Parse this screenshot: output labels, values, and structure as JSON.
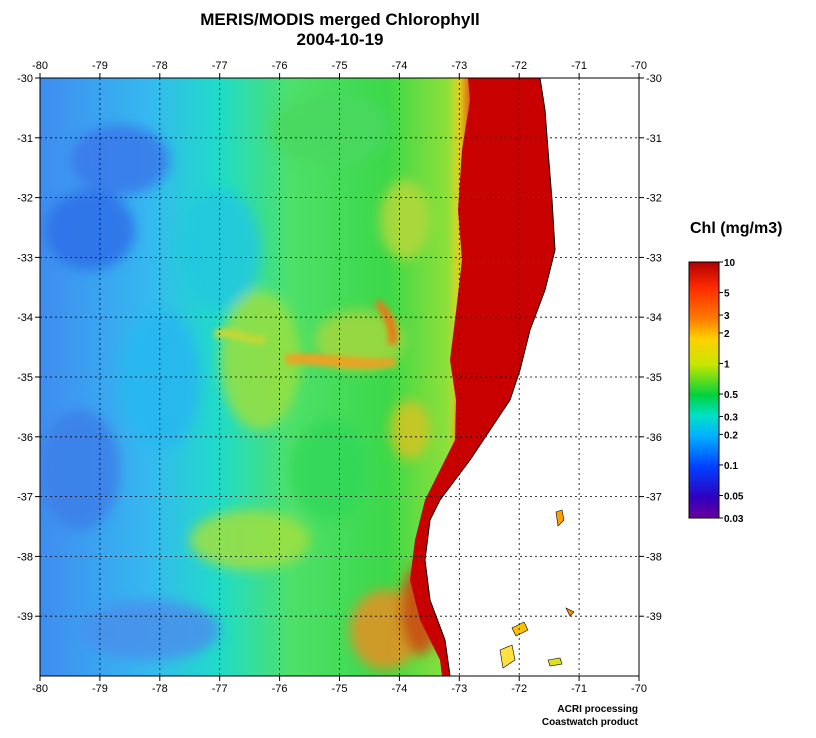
{
  "title": {
    "line1": "MERIS/MODIS merged Chlorophyll",
    "line2": "2004-10-19"
  },
  "axes": {
    "lon_ticks": [
      "-80",
      "-79",
      "-78",
      "-77",
      "-76",
      "-75",
      "-74",
      "-73",
      "-72",
      "-71",
      "-70"
    ],
    "lat_ticks_side": [
      "-30",
      "-31",
      "-32",
      "-33",
      "-34",
      "-35",
      "-36",
      "-37",
      "-38",
      "-39"
    ],
    "lon_range": [
      -80,
      -70
    ],
    "lat_range": [
      -30,
      -40
    ],
    "grid": "dotted"
  },
  "colorbar": {
    "title": "Chl (mg/m3)",
    "labels": [
      "10",
      "5",
      "3",
      "2",
      "1",
      "0.5",
      "0.3",
      "0.2",
      "0.1",
      "0.05",
      "0.03"
    ],
    "scale": "log",
    "colors": [
      "#c00000",
      "#ff2a00",
      "#ff8c00",
      "#ffe000",
      "#9be000",
      "#00d23c",
      "#00e0c8",
      "#00a8ff",
      "#0050ff",
      "#2000c8",
      "#6a009a"
    ]
  },
  "land_color": "#ffffff",
  "credit": {
    "line1": "ACRI processing",
    "line2": "Coastwatch product"
  }
}
